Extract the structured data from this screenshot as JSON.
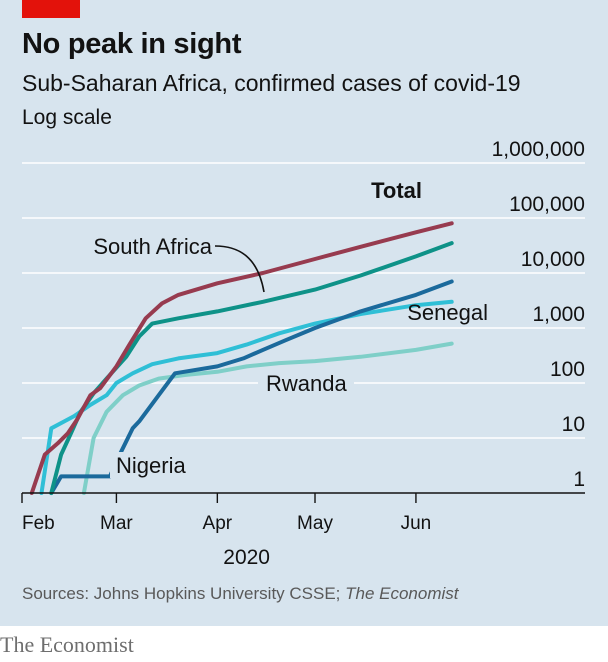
{
  "header": {
    "title": "No peak in sight",
    "subtitle": "Sub-Saharan Africa, confirmed cases of covid-19",
    "scale_note": "Log scale"
  },
  "footer": {
    "source_prefix": "Sources: Johns Hopkins University CSSE; ",
    "source_italic": "The Economist",
    "brand": "The Economist"
  },
  "colors": {
    "background": "#d7e4ee",
    "gridline": "#ffffff",
    "accent_tag": "#e3120b",
    "total": "#973b4f",
    "south_africa": "#0e9288",
    "nigeria": "#1b6a9c",
    "senegal": "#2fbfd6",
    "rwanda": "#7fcfc8"
  },
  "chart_data": {
    "type": "line",
    "title": "No peak in sight",
    "subtitle": "Sub-Saharan Africa, confirmed cases of covid-19",
    "yscale": "log",
    "ylim": [
      1,
      1000000
    ],
    "yticks": [
      1,
      10,
      100,
      1000,
      10000,
      100000,
      1000000
    ],
    "ytick_labels": [
      "1",
      "10",
      "100",
      "1,000",
      "10,000",
      "100,000",
      "1,000,000"
    ],
    "xlim": [
      "2020-02-01",
      "2020-06-13"
    ],
    "xticks": [
      "2020-02-01",
      "2020-03-01",
      "2020-04-01",
      "2020-05-01",
      "2020-06-01"
    ],
    "xtick_labels": [
      "Feb",
      "Mar",
      "Apr",
      "May",
      "Jun"
    ],
    "x_year_label": "2020",
    "grid": true,
    "series": [
      {
        "name": "Total",
        "key": "total",
        "points": [
          [
            "2020-02-04",
            1
          ],
          [
            "2020-02-08",
            5
          ],
          [
            "2020-02-12",
            8
          ],
          [
            "2020-02-15",
            12
          ],
          [
            "2020-02-18",
            22
          ],
          [
            "2020-02-22",
            60
          ],
          [
            "2020-02-25",
            80
          ],
          [
            "2020-03-01",
            200
          ],
          [
            "2020-03-05",
            500
          ],
          [
            "2020-03-10",
            1500
          ],
          [
            "2020-03-15",
            2800
          ],
          [
            "2020-03-20",
            4000
          ],
          [
            "2020-04-01",
            6500
          ],
          [
            "2020-04-15",
            10000
          ],
          [
            "2020-05-01",
            18000
          ],
          [
            "2020-05-15",
            30000
          ],
          [
            "2020-06-01",
            55000
          ],
          [
            "2020-06-12",
            80000
          ]
        ]
      },
      {
        "name": "South Africa",
        "key": "south_africa",
        "points": [
          [
            "2020-02-10",
            1
          ],
          [
            "2020-02-13",
            5
          ],
          [
            "2020-02-16",
            12
          ],
          [
            "2020-02-19",
            30
          ],
          [
            "2020-02-23",
            65
          ],
          [
            "2020-02-27",
            120
          ],
          [
            "2020-03-04",
            300
          ],
          [
            "2020-03-08",
            700
          ],
          [
            "2020-03-12",
            1200
          ],
          [
            "2020-03-20",
            1500
          ],
          [
            "2020-04-01",
            2000
          ],
          [
            "2020-04-15",
            3000
          ],
          [
            "2020-05-01",
            5000
          ],
          [
            "2020-05-15",
            9000
          ],
          [
            "2020-06-01",
            20000
          ],
          [
            "2020-06-12",
            35000
          ]
        ]
      },
      {
        "name": "Nigeria",
        "key": "nigeria",
        "points": [
          [
            "2020-02-10",
            1
          ],
          [
            "2020-02-13",
            2
          ],
          [
            "2020-02-28",
            2
          ],
          [
            "2020-03-02",
            5
          ],
          [
            "2020-03-06",
            15
          ],
          [
            "2020-03-08",
            20
          ],
          [
            "2020-03-14",
            60
          ],
          [
            "2020-03-19",
            150
          ],
          [
            "2020-04-01",
            200
          ],
          [
            "2020-04-09",
            280
          ],
          [
            "2020-04-15",
            400
          ],
          [
            "2020-04-22",
            600
          ],
          [
            "2020-05-01",
            1000
          ],
          [
            "2020-05-15",
            2000
          ],
          [
            "2020-06-01",
            4000
          ],
          [
            "2020-06-12",
            7000
          ]
        ]
      },
      {
        "name": "Senegal",
        "key": "senegal",
        "points": [
          [
            "2020-02-07",
            1
          ],
          [
            "2020-02-10",
            15
          ],
          [
            "2020-02-14",
            20
          ],
          [
            "2020-02-17",
            25
          ],
          [
            "2020-02-22",
            40
          ],
          [
            "2020-02-27",
            60
          ],
          [
            "2020-03-01",
            100
          ],
          [
            "2020-03-06",
            150
          ],
          [
            "2020-03-12",
            220
          ],
          [
            "2020-03-20",
            280
          ],
          [
            "2020-04-01",
            350
          ],
          [
            "2020-04-10",
            500
          ],
          [
            "2020-04-20",
            800
          ],
          [
            "2020-05-01",
            1200
          ],
          [
            "2020-05-15",
            1800
          ],
          [
            "2020-06-01",
            2600
          ],
          [
            "2020-06-12",
            3000
          ]
        ]
      },
      {
        "name": "Rwanda",
        "key": "rwanda",
        "points": [
          [
            "2020-02-20",
            1
          ],
          [
            "2020-02-23",
            10
          ],
          [
            "2020-02-27",
            30
          ],
          [
            "2020-03-03",
            60
          ],
          [
            "2020-03-08",
            90
          ],
          [
            "2020-03-14",
            120
          ],
          [
            "2020-03-22",
            140
          ],
          [
            "2020-04-01",
            160
          ],
          [
            "2020-04-10",
            200
          ],
          [
            "2020-04-20",
            230
          ],
          [
            "2020-05-01",
            250
          ],
          [
            "2020-05-15",
            300
          ],
          [
            "2020-06-01",
            400
          ],
          [
            "2020-06-12",
            520
          ]
        ]
      }
    ]
  }
}
